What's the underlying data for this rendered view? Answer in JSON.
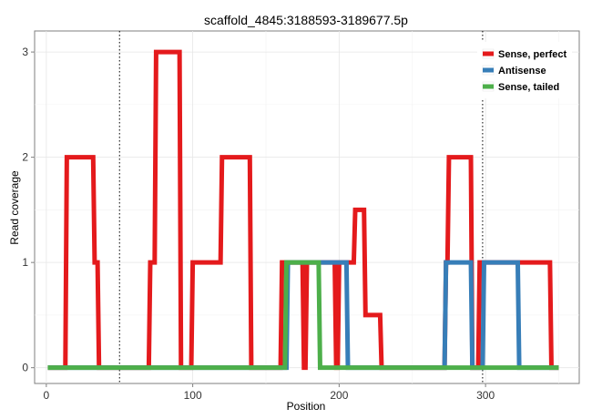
{
  "chart_data": {
    "type": "line",
    "title": "scaffold_4845:3188593-3189677.5p",
    "xlabel": "Position",
    "ylabel": "Read coverage",
    "xlim": [
      -8,
      364
    ],
    "ylim": [
      -0.15,
      3.2
    ],
    "xticks": [
      0,
      100,
      200,
      300
    ],
    "yticks": [
      0,
      1,
      2,
      3
    ],
    "minor_xticks": [
      50,
      150,
      250,
      350
    ],
    "minor_yticks": [
      0.5,
      1.5,
      2.5
    ],
    "vlines": [
      50,
      298
    ],
    "grid": true,
    "legend_position": "top-right",
    "series": [
      {
        "name": "Sense, perfect",
        "color": "#E41A1C",
        "x": [
          1,
          13,
          14,
          32,
          33,
          35,
          36,
          70,
          71,
          74,
          75,
          91,
          92,
          99,
          100,
          119,
          120,
          139,
          140,
          160,
          161,
          175,
          176,
          177,
          178,
          197,
          198,
          199,
          200,
          210,
          211,
          217,
          218,
          228,
          229,
          272,
          273,
          274,
          275,
          290,
          291,
          295,
          296,
          344,
          345,
          350
        ],
        "y": [
          0,
          0,
          2,
          2,
          1,
          1,
          0,
          0,
          1,
          1,
          3,
          3,
          0,
          0,
          1,
          1,
          2,
          2,
          0,
          0,
          1,
          1,
          0,
          0,
          1,
          1,
          0,
          0,
          1,
          1,
          1.5,
          1.5,
          0.5,
          0.5,
          0,
          0,
          1,
          1,
          2,
          2,
          0,
          0,
          1,
          1,
          0,
          0
        ]
      },
      {
        "name": "Antisense",
        "color": "#377EB8",
        "x": [
          1,
          164,
          165,
          190,
          191,
          205,
          206,
          272,
          273,
          290,
          291,
          298,
          299,
          322,
          323,
          350
        ],
        "y": [
          0,
          0,
          1,
          1,
          1,
          1,
          0,
          0,
          1,
          1,
          0,
          0,
          1,
          1,
          0,
          0
        ]
      },
      {
        "name": "Sense, tailed",
        "color": "#4DAF4A",
        "x": [
          1,
          163,
          164,
          186,
          187,
          350
        ],
        "y": [
          0,
          0,
          1,
          1,
          0,
          0
        ]
      }
    ]
  }
}
